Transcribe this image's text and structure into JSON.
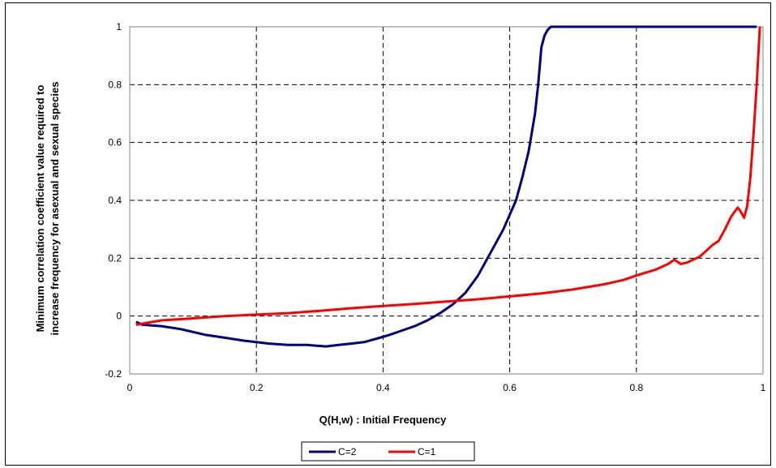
{
  "chart_data": {
    "type": "line",
    "title": "",
    "xlabel": "Q(H,w) : Initial Frequency",
    "ylabel_lines": [
      "Minimum correlation coefficient value required to",
      "increase frequency for asexual and sexual species"
    ],
    "xlim": [
      0,
      1
    ],
    "ylim": [
      -0.2,
      1
    ],
    "x_ticks": [
      "0",
      "0.2",
      "0.4",
      "0.6",
      "0.8",
      "1"
    ],
    "y_ticks": [
      "-0.2",
      "0",
      "0.2",
      "0.4",
      "0.6",
      "0.8",
      "1"
    ],
    "grid": "dashed",
    "legend_position": "bottom",
    "series": [
      {
        "name": "C=2",
        "color": "#000080",
        "points": [
          [
            0.01,
            -0.02
          ],
          [
            0.02,
            -0.03
          ],
          [
            0.05,
            -0.035
          ],
          [
            0.08,
            -0.045
          ],
          [
            0.1,
            -0.055
          ],
          [
            0.12,
            -0.065
          ],
          [
            0.15,
            -0.075
          ],
          [
            0.18,
            -0.085
          ],
          [
            0.2,
            -0.09
          ],
          [
            0.22,
            -0.095
          ],
          [
            0.25,
            -0.1
          ],
          [
            0.28,
            -0.1
          ],
          [
            0.31,
            -0.105
          ],
          [
            0.33,
            -0.1
          ],
          [
            0.35,
            -0.095
          ],
          [
            0.37,
            -0.09
          ],
          [
            0.39,
            -0.078
          ],
          [
            0.41,
            -0.065
          ],
          [
            0.43,
            -0.05
          ],
          [
            0.45,
            -0.035
          ],
          [
            0.47,
            -0.015
          ],
          [
            0.49,
            0.01
          ],
          [
            0.51,
            0.04
          ],
          [
            0.53,
            0.08
          ],
          [
            0.55,
            0.14
          ],
          [
            0.57,
            0.22
          ],
          [
            0.59,
            0.3
          ],
          [
            0.6,
            0.35
          ],
          [
            0.61,
            0.4
          ],
          [
            0.62,
            0.48
          ],
          [
            0.63,
            0.57
          ],
          [
            0.64,
            0.7
          ],
          [
            0.645,
            0.8
          ],
          [
            0.65,
            0.93
          ],
          [
            0.655,
            0.97
          ],
          [
            0.66,
            0.99
          ],
          [
            0.665,
            1.0
          ],
          [
            0.7,
            1.0
          ],
          [
            0.8,
            1.0
          ],
          [
            0.9,
            1.0
          ],
          [
            0.99,
            1.0
          ]
        ]
      },
      {
        "name": "C=1",
        "color": "#ff0000",
        "points": [
          [
            0.01,
            -0.03
          ],
          [
            0.05,
            -0.015
          ],
          [
            0.1,
            -0.008
          ],
          [
            0.15,
            0.0
          ],
          [
            0.2,
            0.005
          ],
          [
            0.25,
            0.01
          ],
          [
            0.3,
            0.018
          ],
          [
            0.35,
            0.027
          ],
          [
            0.4,
            0.035
          ],
          [
            0.45,
            0.042
          ],
          [
            0.5,
            0.05
          ],
          [
            0.55,
            0.058
          ],
          [
            0.6,
            0.068
          ],
          [
            0.65,
            0.078
          ],
          [
            0.7,
            0.092
          ],
          [
            0.75,
            0.11
          ],
          [
            0.78,
            0.125
          ],
          [
            0.8,
            0.14
          ],
          [
            0.83,
            0.16
          ],
          [
            0.85,
            0.18
          ],
          [
            0.86,
            0.195
          ],
          [
            0.87,
            0.18
          ],
          [
            0.88,
            0.185
          ],
          [
            0.9,
            0.205
          ],
          [
            0.92,
            0.245
          ],
          [
            0.93,
            0.26
          ],
          [
            0.94,
            0.3
          ],
          [
            0.95,
            0.345
          ],
          [
            0.96,
            0.375
          ],
          [
            0.965,
            0.36
          ],
          [
            0.97,
            0.34
          ],
          [
            0.975,
            0.38
          ],
          [
            0.98,
            0.48
          ],
          [
            0.985,
            0.63
          ],
          [
            0.99,
            0.8
          ],
          [
            0.995,
            1.0
          ]
        ]
      }
    ]
  }
}
